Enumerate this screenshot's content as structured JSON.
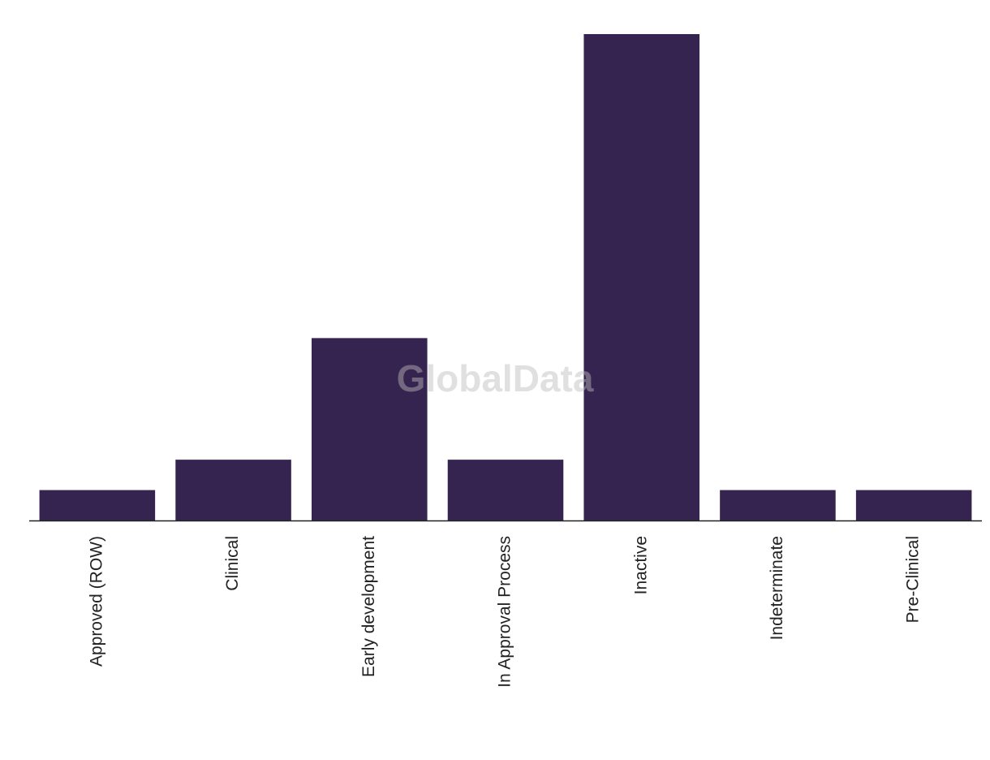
{
  "chart_data": {
    "type": "bar",
    "watermark": "GlobalData",
    "categories": [
      "Approved (ROW)",
      "Clinical",
      "Early development",
      "In Approval Process",
      "Inactive",
      "Indeterminate",
      "Pre-Clinical"
    ],
    "values": [
      1,
      2,
      6,
      2,
      16,
      1,
      1
    ],
    "color": "#362450"
  }
}
